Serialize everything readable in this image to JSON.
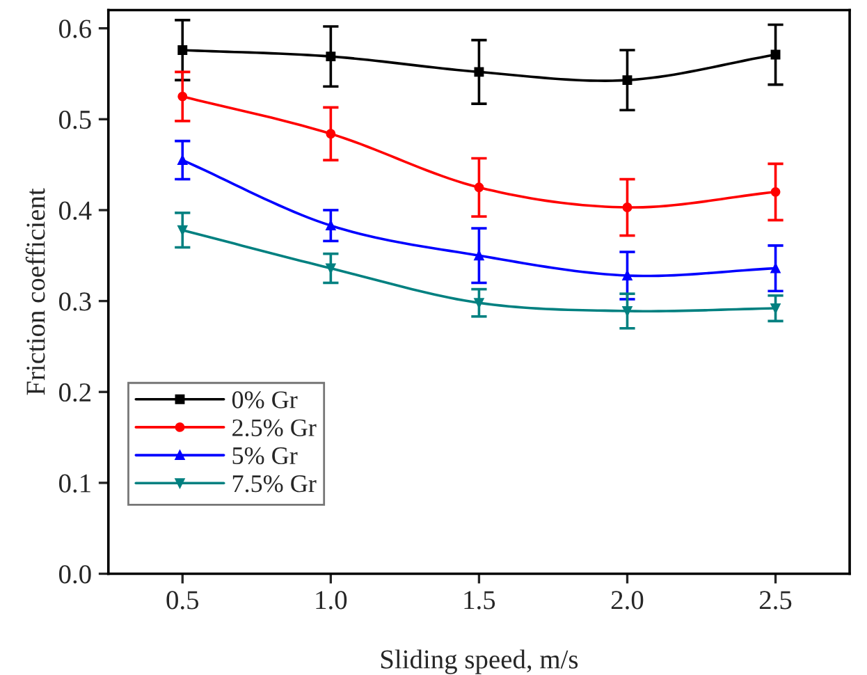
{
  "chart_data": {
    "type": "line",
    "xlabel": "Sliding speed, m/s",
    "ylabel": "Friction coefficient",
    "x": [
      0.5,
      1.0,
      1.5,
      2.0,
      2.5
    ],
    "xlim": [
      0.25,
      2.75
    ],
    "xticks": [
      {
        "value": 0.5,
        "label": "0.5"
      },
      {
        "value": 1.0,
        "label": "1.0"
      },
      {
        "value": 1.5,
        "label": "1.5"
      },
      {
        "value": 2.0,
        "label": "2.0"
      },
      {
        "value": 2.5,
        "label": "2.5"
      }
    ],
    "ylim": [
      0,
      0.62
    ],
    "yticks": [
      {
        "value": 0,
        "label": "0.0"
      },
      {
        "value": 0.1,
        "label": "0.1"
      },
      {
        "value": 0.2,
        "label": "0.2"
      },
      {
        "value": 0.3,
        "label": "0.3"
      },
      {
        "value": 0.4,
        "label": "0.4"
      },
      {
        "value": 0.5,
        "label": "0.5"
      },
      {
        "value": 0.6,
        "label": "0.6"
      }
    ],
    "grid": false,
    "legend": "bottom left",
    "line_style": "solid",
    "series": [
      {
        "name": "0% Gr",
        "color": "#000000",
        "marker": "square",
        "values": [
          0.576,
          0.569,
          0.552,
          0.543,
          0.571
        ],
        "errors": [
          0.033,
          0.033,
          0.035,
          0.033,
          0.033
        ]
      },
      {
        "name": "2.5% Gr",
        "color": "#ff0000",
        "marker": "circle",
        "values": [
          0.525,
          0.484,
          0.425,
          0.403,
          0.42
        ],
        "errors": [
          0.027,
          0.029,
          0.032,
          0.031,
          0.031
        ]
      },
      {
        "name": "5% Gr",
        "color": "#0000ff",
        "marker": "triangle",
        "values": [
          0.455,
          0.383,
          0.35,
          0.328,
          0.336
        ],
        "errors": [
          0.021,
          0.017,
          0.03,
          0.026,
          0.025
        ]
      },
      {
        "name": "7.5% Gr",
        "color": "#008080",
        "marker": "triangle_down",
        "values": [
          0.378,
          0.336,
          0.298,
          0.289,
          0.292
        ],
        "errors": [
          0.019,
          0.016,
          0.015,
          0.019,
          0.014
        ]
      }
    ]
  }
}
